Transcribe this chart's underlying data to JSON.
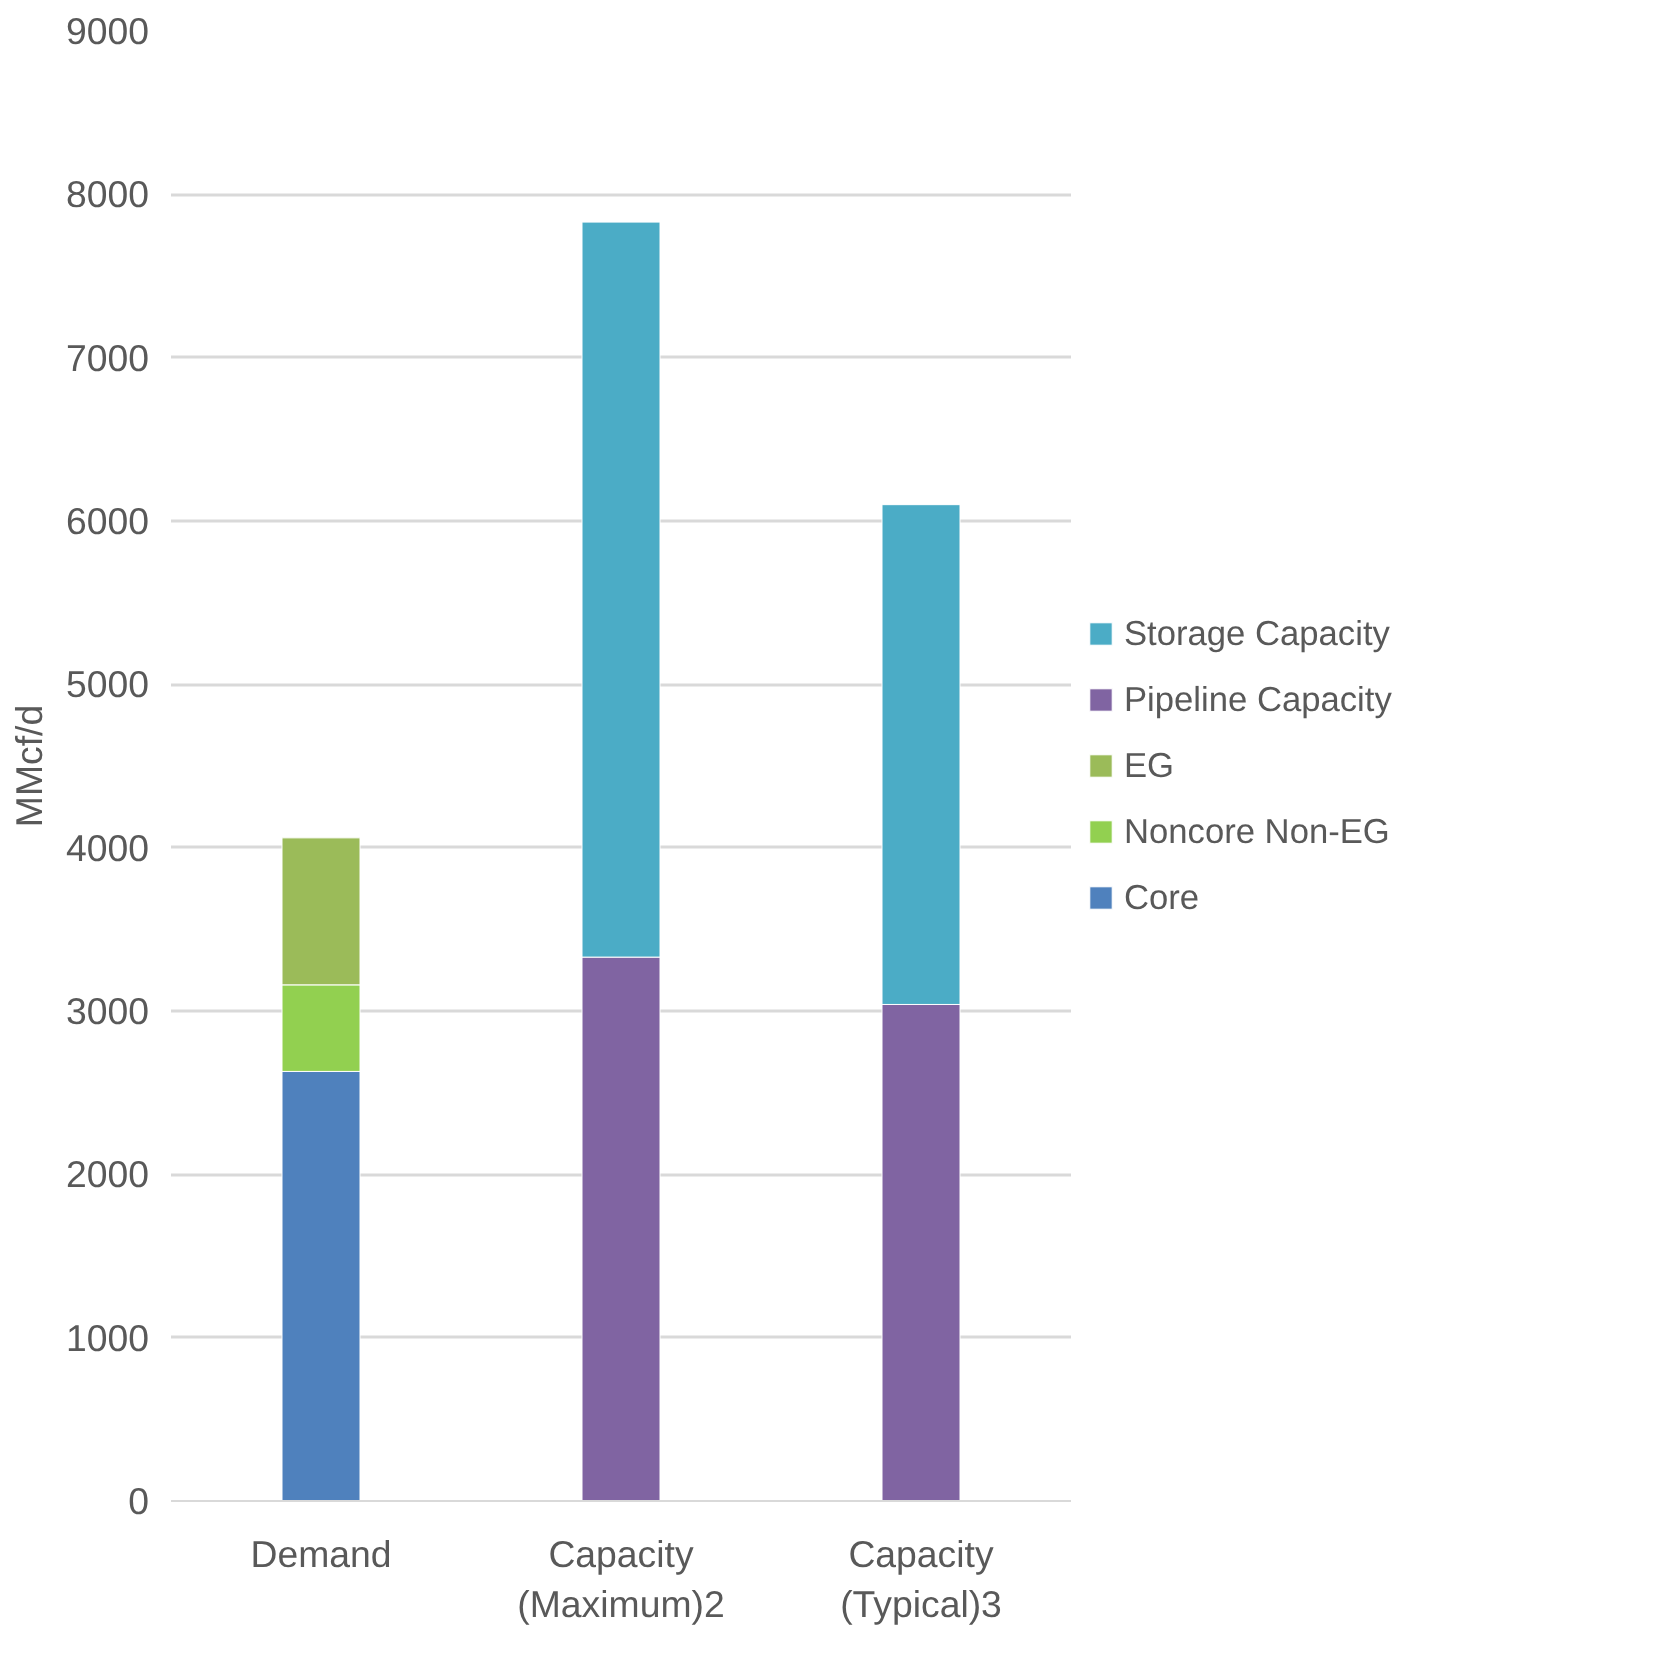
{
  "chart_data": {
    "type": "bar",
    "stacked": true,
    "ylabel": "MMcf/d",
    "categories": [
      "Demand",
      "Capacity\n(Maximum)2",
      "Capacity\n(Typical)3"
    ],
    "series": [
      {
        "name": "Core",
        "color": "#4f81bd",
        "values": [
          2630,
          null,
          null
        ]
      },
      {
        "name": "Noncore Non-EG",
        "color": "#92d050",
        "values": [
          530,
          null,
          null
        ]
      },
      {
        "name": "EG",
        "color": "#9bbb59",
        "values": [
          900,
          null,
          null
        ]
      },
      {
        "name": "Pipeline Capacity",
        "color": "#8064a2",
        "values": [
          null,
          3330,
          3040
        ]
      },
      {
        "name": "Storage Capacity",
        "color": "#4bacc6",
        "values": [
          null,
          4500,
          3060
        ]
      }
    ],
    "ylim": [
      0,
      9000
    ],
    "yticks": [
      0,
      1000,
      2000,
      3000,
      4000,
      5000,
      6000,
      7000,
      8000,
      9000
    ],
    "grid": "y",
    "legend": "right"
  }
}
